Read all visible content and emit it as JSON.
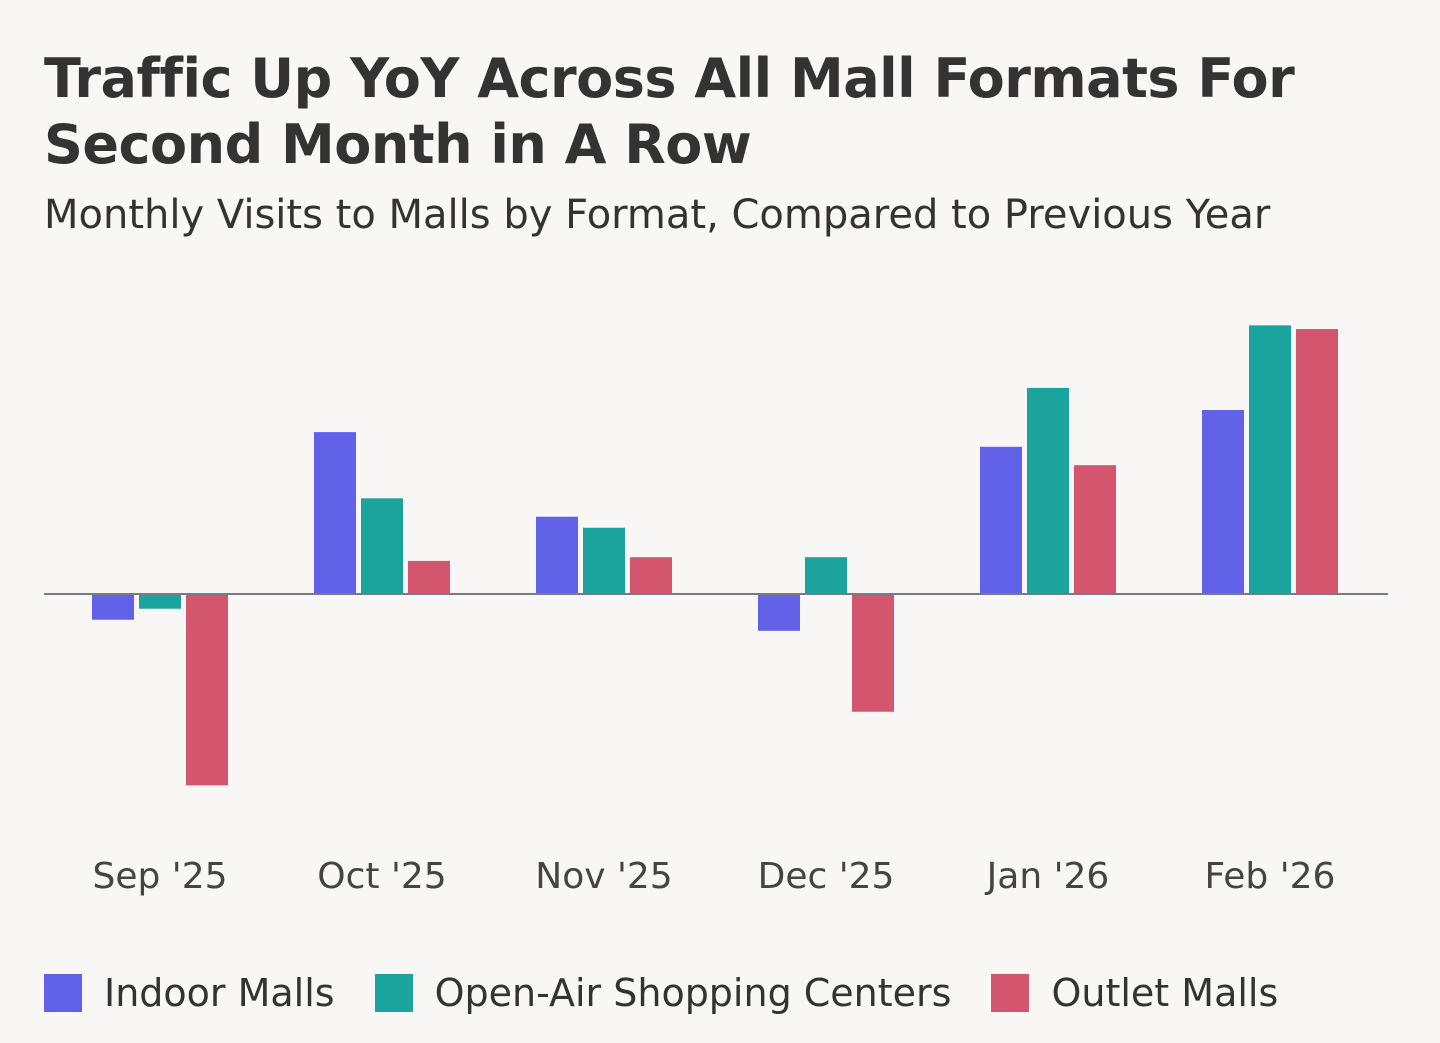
{
  "chart_data": {
    "type": "bar",
    "title": "Traffic Up YoY Across All Mall Formats For Second Month in A Row",
    "subtitle": "Monthly Visits to Malls by Format, Compared to Previous Year",
    "categories": [
      "Sep '25",
      "Oct '25",
      "Nov '25",
      "Dec '25",
      "Jan '26",
      "Feb '26"
    ],
    "series": [
      {
        "name": "Indoor Malls",
        "color": "#6262e8",
        "values": [
          -0.7,
          4.4,
          2.1,
          -1.0,
          4.0,
          5.0
        ]
      },
      {
        "name": "Open-Air Shopping Centers",
        "color": "#1ba39e",
        "values": [
          -0.4,
          2.6,
          1.8,
          1.0,
          5.6,
          7.3
        ]
      },
      {
        "name": "Outlet Malls",
        "color": "#d4566e",
        "values": [
          -5.2,
          0.9,
          1.0,
          -3.2,
          3.5,
          7.2
        ]
      }
    ],
    "ylim": [
      -6.5,
      7.5
    ],
    "ylabel": "",
    "xlabel": "",
    "grid": false,
    "zero_line": true,
    "value_labels": false,
    "legend_position": "bottom-left"
  }
}
